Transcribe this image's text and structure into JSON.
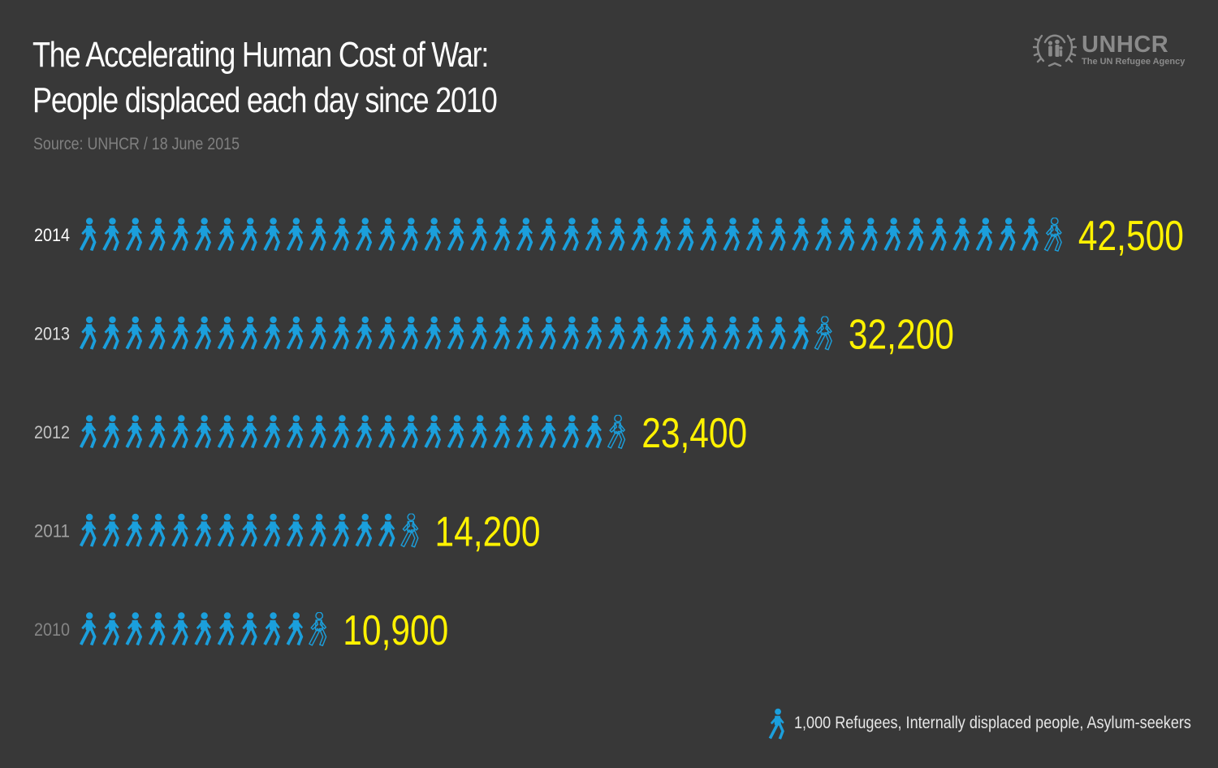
{
  "header": {
    "title_line1": "The Accelerating Human Cost of War:",
    "title_line2": "People displaced each day since 2010",
    "source": "Source: UNHCR / 18 June 2015"
  },
  "logo": {
    "name": "UNHCR",
    "tagline": "The UN Refugee Agency"
  },
  "legend": {
    "icon": "walking-person-icon",
    "text": "1,000 Refugees, Internally displaced people, Asylum-seekers"
  },
  "colors": {
    "background": "#383838",
    "icon": "#1b9fdc",
    "value": "#fff200",
    "year_labels": [
      "#ffffff",
      "#e0e0e0",
      "#c2c2c2",
      "#a3a3a3",
      "#858585"
    ]
  },
  "chart_data": {
    "type": "pictogram",
    "unit": 1000,
    "categories": [
      "2014",
      "2013",
      "2012",
      "2011",
      "2010"
    ],
    "values": [
      42500,
      32200,
      23400,
      14200,
      10900
    ],
    "value_labels": [
      "42,500",
      "32,200",
      "23,400",
      "14,200",
      "10,900"
    ]
  }
}
